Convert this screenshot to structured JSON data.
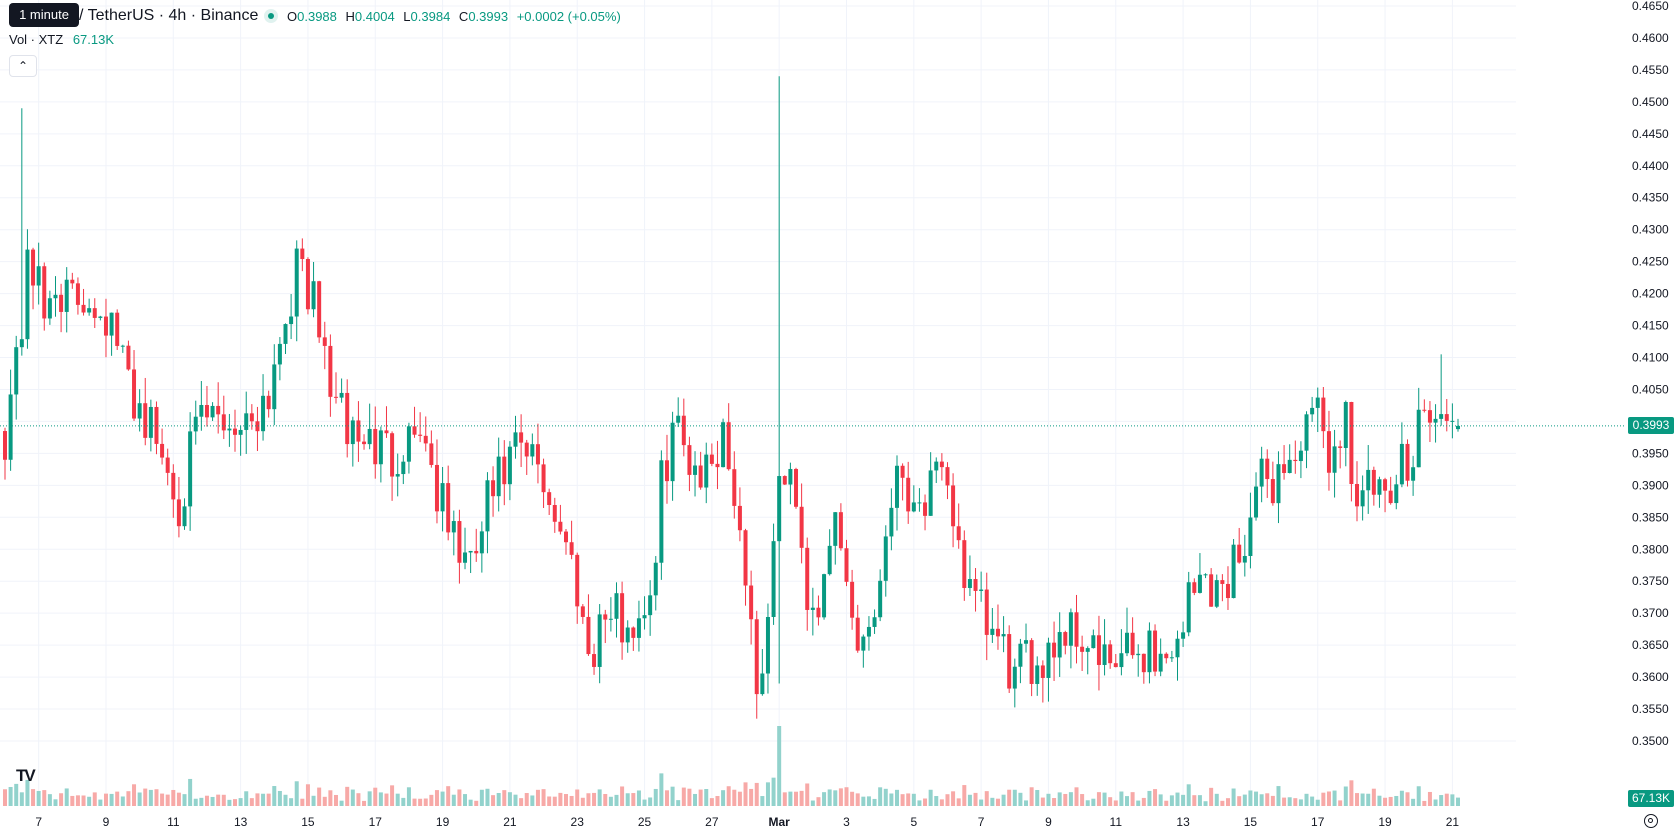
{
  "header": {
    "tooltip": "1 minute",
    "symbol": "/ TetherUS · 4h · Binance",
    "ohlc": {
      "o_label": "O",
      "o": "0.3988",
      "h_label": "H",
      "h": "0.4004",
      "l_label": "L",
      "l": "0.3984",
      "c_label": "C",
      "c": "0.3993",
      "change": "+0.0002 (+0.05%)"
    },
    "volume_label": "Vol · XTZ",
    "volume_value": "67.13K",
    "collapse_icon": "chevron-up-icon"
  },
  "logo": "TV",
  "price_axis": {
    "current_price": "0.3993",
    "current_volume": "67.13K",
    "settings_icon": "gear-icon"
  },
  "colors": {
    "up": "#089981",
    "down": "#f23645",
    "volume_up": "#92d2cc",
    "volume_down": "#f7a9a7",
    "grid": "#f0f3fa",
    "current_price_line": "#089981"
  },
  "chart_data": {
    "type": "candlestick",
    "timeframe": "4h",
    "y_range": [
      0.35,
      0.465
    ],
    "y_ticks": [
      "0.3500",
      "0.3550",
      "0.3600",
      "0.3650",
      "0.3700",
      "0.3750",
      "0.3800",
      "0.3850",
      "0.3900",
      "0.3950",
      "0.4000",
      "0.4050",
      "0.4100",
      "0.4150",
      "0.4200",
      "0.4250",
      "0.4300",
      "0.4350",
      "0.4400",
      "0.4450",
      "0.4500",
      "0.4550",
      "0.4600",
      "0.4650"
    ],
    "x_ticks": [
      {
        "label": "7",
        "bar": 6
      },
      {
        "label": "9",
        "bar": 18
      },
      {
        "label": "11",
        "bar": 30
      },
      {
        "label": "13",
        "bar": 42
      },
      {
        "label": "15",
        "bar": 54
      },
      {
        "label": "17",
        "bar": 66
      },
      {
        "label": "19",
        "bar": 78
      },
      {
        "label": "21",
        "bar": 90
      },
      {
        "label": "23",
        "bar": 102
      },
      {
        "label": "25",
        "bar": 114
      },
      {
        "label": "27",
        "bar": 126
      },
      {
        "label": "Mar",
        "bar": 138
      },
      {
        "label": "3",
        "bar": 150
      },
      {
        "label": "5",
        "bar": 162
      },
      {
        "label": "7",
        "bar": 174
      },
      {
        "label": "9",
        "bar": 186
      },
      {
        "label": "11",
        "bar": 198
      },
      {
        "label": "13",
        "bar": 210
      },
      {
        "label": "15",
        "bar": 222
      },
      {
        "label": "17",
        "bar": 234
      },
      {
        "label": "19",
        "bar": 246
      },
      {
        "label": "21",
        "bar": 258
      }
    ],
    "anchors": [
      [
        0,
        0.3985
      ],
      [
        3,
        0.415
      ],
      [
        4,
        0.428
      ],
      [
        7,
        0.416
      ],
      [
        9,
        0.422
      ],
      [
        12,
        0.418
      ],
      [
        15,
        0.42
      ],
      [
        18,
        0.417
      ],
      [
        22,
        0.406
      ],
      [
        26,
        0.399
      ],
      [
        31,
        0.388
      ],
      [
        35,
        0.4
      ],
      [
        38,
        0.4
      ],
      [
        43,
        0.4
      ],
      [
        47,
        0.405
      ],
      [
        50,
        0.418
      ],
      [
        53,
        0.425
      ],
      [
        57,
        0.41
      ],
      [
        60,
        0.4
      ],
      [
        64,
        0.397
      ],
      [
        69,
        0.395
      ],
      [
        74,
        0.4
      ],
      [
        78,
        0.386
      ],
      [
        83,
        0.376
      ],
      [
        86,
        0.387
      ],
      [
        91,
        0.395
      ],
      [
        95,
        0.393
      ],
      [
        98,
        0.386
      ],
      [
        102,
        0.375
      ],
      [
        104,
        0.364
      ],
      [
        107,
        0.37
      ],
      [
        112,
        0.368
      ],
      [
        116,
        0.376
      ],
      [
        117,
        0.39
      ],
      [
        119,
        0.4
      ],
      [
        121,
        0.396
      ],
      [
        125,
        0.392
      ],
      [
        128,
        0.399
      ],
      [
        131,
        0.384
      ],
      [
        133,
        0.368
      ],
      [
        134,
        0.36
      ],
      [
        136,
        0.365
      ],
      [
        137,
        0.384
      ],
      [
        138,
        0.39
      ],
      [
        141,
        0.39
      ],
      [
        143,
        0.373
      ],
      [
        146,
        0.372
      ],
      [
        148,
        0.385
      ],
      [
        150,
        0.375
      ],
      [
        152,
        0.366
      ],
      [
        155,
        0.37
      ],
      [
        158,
        0.39
      ],
      [
        160,
        0.392
      ],
      [
        163,
        0.387
      ],
      [
        166,
        0.39
      ],
      [
        169,
        0.386
      ],
      [
        172,
        0.372
      ],
      [
        175,
        0.368
      ],
      [
        180,
        0.36
      ],
      [
        184,
        0.363
      ],
      [
        186,
        0.365
      ],
      [
        189,
        0.368
      ],
      [
        193,
        0.366
      ],
      [
        196,
        0.361
      ],
      [
        200,
        0.363
      ],
      [
        204,
        0.365
      ],
      [
        207,
        0.362
      ],
      [
        211,
        0.372
      ],
      [
        214,
        0.376
      ],
      [
        217,
        0.373
      ],
      [
        221,
        0.383
      ],
      [
        224,
        0.39
      ],
      [
        227,
        0.392
      ],
      [
        230,
        0.395
      ],
      [
        232,
        0.398
      ],
      [
        234,
        0.4
      ],
      [
        237,
        0.394
      ],
      [
        239,
        0.402
      ],
      [
        241,
        0.387
      ],
      [
        244,
        0.39
      ],
      [
        246,
        0.385
      ],
      [
        249,
        0.393
      ],
      [
        251,
        0.397
      ],
      [
        252,
        0.402
      ],
      [
        255,
        0.4
      ],
      [
        258,
        0.399
      ],
      [
        259,
        0.3993
      ]
    ],
    "special_bars": [
      {
        "bar": 3,
        "high": 0.449
      },
      {
        "bar": 138,
        "high": 0.454,
        "low": 0.359,
        "volume": 2.8
      },
      {
        "bar": 256,
        "high": 0.4105
      }
    ],
    "bar_count": 260,
    "volume_unit": "K"
  }
}
